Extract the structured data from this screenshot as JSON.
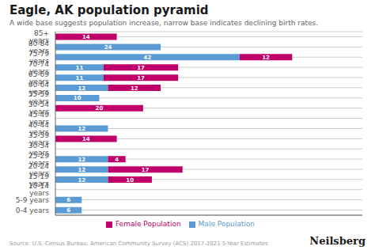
{
  "chart_data": {
    "type": "bar",
    "orientation": "horizontal",
    "stacked": true,
    "title": "Eagle, AK population pyramid",
    "subtitle": "A wide base suggests population increase, narrow base indicates declining birth rates.",
    "annotations": [
      "Source: U.S. Census Bureau, American Community Survey (ACS) 2017-2021 5-Year Estimates",
      "Neilsberg"
    ],
    "categories": [
      "0-4 years",
      "5-9 years",
      "10-14 years",
      "15-19 years",
      "20-24 years",
      "25-29 years",
      "30-34 years",
      "35-39 years",
      "40-44 years",
      "45-49 years",
      "50-54 years",
      "55-59 years",
      "60-64 years",
      "65-69 years",
      "70-74 years",
      "75-79 years",
      "80-84 years",
      "85+ years"
    ],
    "series": [
      {
        "name": "Male Population",
        "color": "#5b9bd5",
        "values": [
          6,
          6,
          0,
          12,
          12,
          12,
          0,
          0,
          12,
          0,
          0,
          10,
          12,
          11,
          11,
          42,
          24,
          0
        ]
      },
      {
        "name": "Female Population",
        "color": "#c0006a",
        "values": [
          0,
          0,
          0,
          10,
          17,
          4,
          0,
          14,
          0,
          0,
          20,
          0,
          12,
          17,
          17,
          12,
          0,
          14
        ]
      }
    ],
    "xlim": [
      0,
      70
    ],
    "tick_labels": "y",
    "data_labels": true,
    "grid": true,
    "legend": "bottom"
  }
}
